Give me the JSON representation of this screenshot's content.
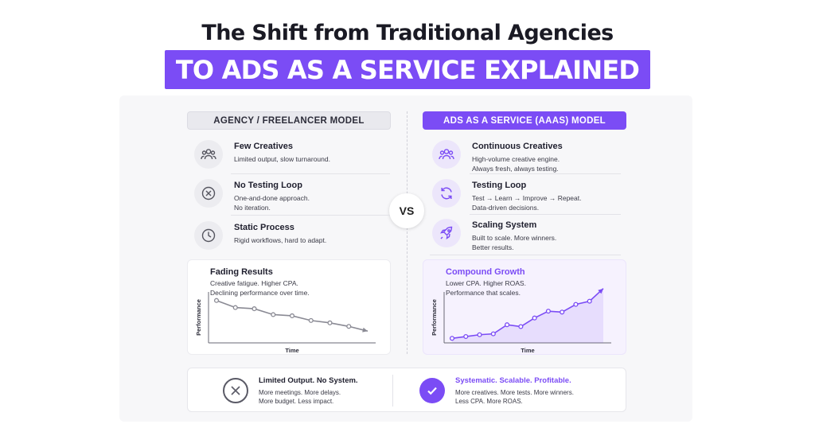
{
  "title": "The Shift from Traditional Agencies",
  "banner": "TO ADS AS A SERVICE EXPLAINED",
  "vs": "VS",
  "left": {
    "header": "AGENCY / FREELANCER MODEL",
    "items": [
      {
        "icon": "people-icon",
        "title": "Few Creatives",
        "desc": [
          "Limited output, slow turnaround."
        ]
      },
      {
        "icon": "x-circle-icon",
        "title": "No Testing Loop",
        "desc": [
          "One-and-done approach.",
          "No iteration."
        ]
      },
      {
        "icon": "clock-icon",
        "title": "Static Process",
        "desc": [
          "Rigid workflows, hard to adapt."
        ]
      }
    ],
    "chart": {
      "title": "Fading Results",
      "desc": [
        "Creative fatigue. Higher CPA.",
        "Declining performance over time."
      ]
    }
  },
  "right": {
    "header": "ADS AS A SERVICE (AAAS) MODEL",
    "items": [
      {
        "icon": "team-icon",
        "title": "Continuous Creatives",
        "desc": [
          "High-volume creative engine.",
          "Always fresh, always testing."
        ]
      },
      {
        "icon": "refresh-icon",
        "title": "Testing Loop",
        "desc": [
          "Test → Learn → Improve → Repeat.",
          "Data-driven decisions."
        ]
      },
      {
        "icon": "rocket-icon",
        "title": "Scaling System",
        "desc": [
          "Built to scale. More winners.",
          "Better results."
        ]
      }
    ],
    "chart": {
      "title": "Compound Growth",
      "desc": [
        "Lower CPA. Higher ROAS.",
        "Performance that scales."
      ]
    }
  },
  "chart_data": [
    {
      "type": "line",
      "title": "Fading Results",
      "xlabel": "Time",
      "ylabel": "Performance",
      "x": [
        1,
        2,
        3,
        4,
        5,
        6,
        7,
        8,
        9
      ],
      "series": [
        {
          "values": [
            72,
            60,
            58,
            48,
            46,
            38,
            34,
            28,
            20
          ]
        }
      ],
      "ylim": [
        0,
        100
      ],
      "color": "#8a8a94"
    },
    {
      "type": "line",
      "title": "Compound Growth",
      "xlabel": "Time",
      "ylabel": "Performance",
      "x": [
        1,
        2,
        3,
        4,
        5,
        6,
        7,
        8,
        9,
        10,
        11,
        12
      ],
      "series": [
        {
          "values": [
            10,
            14,
            18,
            20,
            40,
            36,
            55,
            70,
            68,
            85,
            92,
            120
          ]
        }
      ],
      "ylim": [
        0,
        130
      ],
      "color": "#7b4cf5"
    }
  ],
  "bottom": {
    "left": {
      "title": "Limited Output. No System.",
      "desc": [
        "More meetings. More delays.",
        "More budget. Less impact."
      ]
    },
    "right": {
      "title": "Systematic. Scalable. Profitable.",
      "desc": [
        "More creatives. More tests. More winners.",
        "Less CPA. More ROAS."
      ]
    }
  },
  "colors": {
    "accent": "#7b4cf5",
    "muted": "#8a8a94"
  }
}
